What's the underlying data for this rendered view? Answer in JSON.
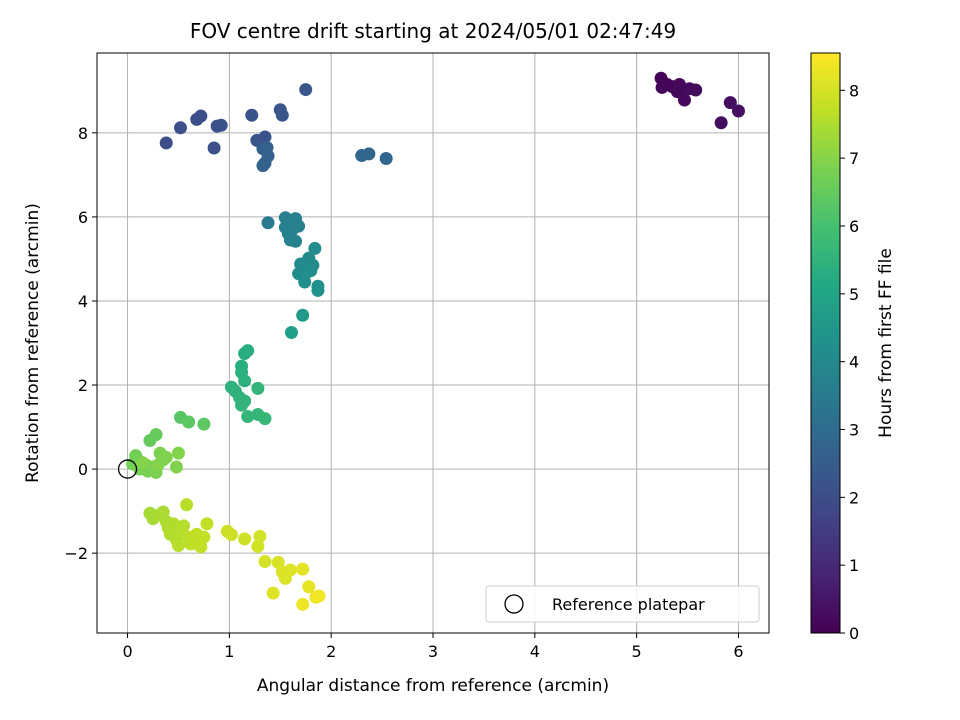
{
  "chart_data": {
    "type": "scatter",
    "title": "FOV centre drift starting at 2024/05/01 02:47:49",
    "xlabel": "Angular distance from reference (arcmin)",
    "ylabel": "Rotation from reference (arcmin)",
    "xlim": [
      -0.3,
      6.3
    ],
    "ylim": [
      -3.9,
      9.9
    ],
    "xticks": [
      0,
      1,
      2,
      3,
      4,
      5,
      6
    ],
    "yticks": [
      -2,
      0,
      2,
      4,
      6,
      8
    ],
    "ytick_labels": [
      "−2",
      "0",
      "2",
      "4",
      "6",
      "8"
    ],
    "grid": true,
    "colorbar": {
      "label": "Hours from first FF file",
      "min": 0,
      "max": 8.55,
      "ticks": [
        0,
        1,
        2,
        3,
        4,
        5,
        6,
        7,
        8
      ],
      "colormap": "viridis"
    },
    "legend": {
      "position": "bottom-right",
      "entries": [
        "Reference platepar"
      ]
    },
    "reference_point": {
      "x": 0,
      "y": 0
    },
    "points": [
      {
        "x": 5.24,
        "y": 9.3,
        "c": 0.05
      },
      {
        "x": 5.3,
        "y": 9.15,
        "c": 0.08
      },
      {
        "x": 5.25,
        "y": 9.08,
        "c": 0.1
      },
      {
        "x": 5.35,
        "y": 9.1,
        "c": 0.12
      },
      {
        "x": 5.42,
        "y": 9.15,
        "c": 0.15
      },
      {
        "x": 5.45,
        "y": 9.05,
        "c": 0.17
      },
      {
        "x": 5.4,
        "y": 8.98,
        "c": 0.2
      },
      {
        "x": 5.47,
        "y": 8.78,
        "c": 0.22
      },
      {
        "x": 5.52,
        "y": 9.05,
        "c": 0.25
      },
      {
        "x": 5.58,
        "y": 9.02,
        "c": 0.27
      },
      {
        "x": 5.83,
        "y": 8.24,
        "c": 0.3
      },
      {
        "x": 5.92,
        "y": 8.72,
        "c": 0.32
      },
      {
        "x": 6.0,
        "y": 8.52,
        "c": 0.35
      },
      {
        "x": 0.38,
        "y": 7.76,
        "c": 2.0
      },
      {
        "x": 0.52,
        "y": 8.12,
        "c": 2.03
      },
      {
        "x": 0.68,
        "y": 8.32,
        "c": 2.05
      },
      {
        "x": 0.72,
        "y": 8.4,
        "c": 2.07
      },
      {
        "x": 0.85,
        "y": 7.64,
        "c": 2.1
      },
      {
        "x": 0.88,
        "y": 8.16,
        "c": 2.12
      },
      {
        "x": 0.92,
        "y": 8.18,
        "c": 2.15
      },
      {
        "x": 1.22,
        "y": 8.42,
        "c": 2.18
      },
      {
        "x": 1.27,
        "y": 7.82,
        "c": 2.2
      },
      {
        "x": 1.35,
        "y": 7.9,
        "c": 2.22
      },
      {
        "x": 1.5,
        "y": 8.55,
        "c": 2.25
      },
      {
        "x": 1.52,
        "y": 8.42,
        "c": 2.27
      },
      {
        "x": 1.75,
        "y": 9.03,
        "c": 2.3
      },
      {
        "x": 1.33,
        "y": 7.62,
        "c": 2.6
      },
      {
        "x": 1.37,
        "y": 7.65,
        "c": 2.62
      },
      {
        "x": 1.38,
        "y": 7.45,
        "c": 2.65
      },
      {
        "x": 1.35,
        "y": 7.28,
        "c": 2.68
      },
      {
        "x": 1.33,
        "y": 7.22,
        "c": 2.7
      },
      {
        "x": 2.3,
        "y": 7.46,
        "c": 2.8
      },
      {
        "x": 2.37,
        "y": 7.5,
        "c": 2.82
      },
      {
        "x": 2.54,
        "y": 7.39,
        "c": 2.85
      },
      {
        "x": 1.38,
        "y": 5.86,
        "c": 3.5
      },
      {
        "x": 1.55,
        "y": 5.98,
        "c": 3.6
      },
      {
        "x": 1.6,
        "y": 5.9,
        "c": 3.62
      },
      {
        "x": 1.65,
        "y": 5.96,
        "c": 3.65
      },
      {
        "x": 1.55,
        "y": 5.75,
        "c": 3.68
      },
      {
        "x": 1.62,
        "y": 5.7,
        "c": 3.7
      },
      {
        "x": 1.68,
        "y": 5.78,
        "c": 3.72
      },
      {
        "x": 1.58,
        "y": 5.6,
        "c": 3.75
      },
      {
        "x": 1.6,
        "y": 5.45,
        "c": 3.78
      },
      {
        "x": 1.65,
        "y": 5.42,
        "c": 3.8
      },
      {
        "x": 1.7,
        "y": 4.88,
        "c": 4.0
      },
      {
        "x": 1.75,
        "y": 4.8,
        "c": 4.02
      },
      {
        "x": 1.78,
        "y": 5.02,
        "c": 4.05
      },
      {
        "x": 1.82,
        "y": 4.85,
        "c": 4.08
      },
      {
        "x": 1.84,
        "y": 5.25,
        "c": 4.1
      },
      {
        "x": 1.68,
        "y": 4.65,
        "c": 4.12
      },
      {
        "x": 1.73,
        "y": 4.6,
        "c": 4.15
      },
      {
        "x": 1.76,
        "y": 4.68,
        "c": 4.17
      },
      {
        "x": 1.8,
        "y": 4.72,
        "c": 4.2
      },
      {
        "x": 1.74,
        "y": 4.45,
        "c": 4.22
      },
      {
        "x": 1.87,
        "y": 4.35,
        "c": 4.25
      },
      {
        "x": 1.87,
        "y": 4.25,
        "c": 4.27
      },
      {
        "x": 1.72,
        "y": 3.66,
        "c": 4.6
      },
      {
        "x": 1.61,
        "y": 3.25,
        "c": 4.8
      },
      {
        "x": 1.15,
        "y": 2.75,
        "c": 5.3
      },
      {
        "x": 1.18,
        "y": 2.82,
        "c": 5.32
      },
      {
        "x": 1.12,
        "y": 2.45,
        "c": 5.35
      },
      {
        "x": 1.12,
        "y": 2.3,
        "c": 5.38
      },
      {
        "x": 1.15,
        "y": 2.1,
        "c": 5.4
      },
      {
        "x": 1.02,
        "y": 1.95,
        "c": 5.45
      },
      {
        "x": 1.06,
        "y": 1.85,
        "c": 5.48
      },
      {
        "x": 1.1,
        "y": 1.7,
        "c": 5.5
      },
      {
        "x": 1.15,
        "y": 1.62,
        "c": 5.52
      },
      {
        "x": 1.12,
        "y": 1.52,
        "c": 5.55
      },
      {
        "x": 1.28,
        "y": 1.92,
        "c": 5.58
      },
      {
        "x": 1.18,
        "y": 1.25,
        "c": 5.6
      },
      {
        "x": 1.28,
        "y": 1.3,
        "c": 5.62
      },
      {
        "x": 1.35,
        "y": 1.2,
        "c": 5.65
      },
      {
        "x": 0.52,
        "y": 1.23,
        "c": 6.3
      },
      {
        "x": 0.6,
        "y": 1.12,
        "c": 6.35
      },
      {
        "x": 0.75,
        "y": 1.07,
        "c": 6.38
      },
      {
        "x": 0.22,
        "y": 0.68,
        "c": 6.5
      },
      {
        "x": 0.28,
        "y": 0.82,
        "c": 6.52
      },
      {
        "x": 0.08,
        "y": 0.32,
        "c": 6.7
      },
      {
        "x": 0.1,
        "y": 0.22,
        "c": 6.72
      },
      {
        "x": 0.05,
        "y": 0.12,
        "c": 6.74
      },
      {
        "x": 0.12,
        "y": 0.0,
        "c": 6.76
      },
      {
        "x": 0.18,
        "y": 0.1,
        "c": 6.78
      },
      {
        "x": 0.2,
        "y": -0.05,
        "c": 6.8
      },
      {
        "x": 0.25,
        "y": 0.05,
        "c": 6.82
      },
      {
        "x": 0.28,
        "y": -0.08,
        "c": 6.84
      },
      {
        "x": 0.32,
        "y": 0.38,
        "c": 6.86
      },
      {
        "x": 0.35,
        "y": 0.22,
        "c": 6.88
      },
      {
        "x": 0.38,
        "y": 0.28,
        "c": 6.9
      },
      {
        "x": 0.48,
        "y": 0.05,
        "c": 6.92
      },
      {
        "x": 0.5,
        "y": 0.38,
        "c": 6.94
      },
      {
        "x": 0.15,
        "y": 0.15,
        "c": 6.96
      },
      {
        "x": 0.3,
        "y": 0.1,
        "c": 6.98
      },
      {
        "x": 0.22,
        "y": -1.05,
        "c": 7.4
      },
      {
        "x": 0.25,
        "y": -1.18,
        "c": 7.42
      },
      {
        "x": 0.3,
        "y": -1.1,
        "c": 7.44
      },
      {
        "x": 0.35,
        "y": -1.02,
        "c": 7.46
      },
      {
        "x": 0.38,
        "y": -1.25,
        "c": 7.48
      },
      {
        "x": 0.4,
        "y": -1.4,
        "c": 7.5
      },
      {
        "x": 0.45,
        "y": -1.3,
        "c": 7.52
      },
      {
        "x": 0.42,
        "y": -1.55,
        "c": 7.54
      },
      {
        "x": 0.48,
        "y": -1.68,
        "c": 7.56
      },
      {
        "x": 0.52,
        "y": -1.5,
        "c": 7.58
      },
      {
        "x": 0.55,
        "y": -1.35,
        "c": 7.6
      },
      {
        "x": 0.5,
        "y": -1.82,
        "c": 7.62
      },
      {
        "x": 0.58,
        "y": -0.85,
        "c": 7.64
      },
      {
        "x": 0.6,
        "y": -1.62,
        "c": 7.66
      },
      {
        "x": 0.62,
        "y": -1.78,
        "c": 7.68
      },
      {
        "x": 0.65,
        "y": -1.7,
        "c": 7.7
      },
      {
        "x": 0.68,
        "y": -1.55,
        "c": 7.72
      },
      {
        "x": 0.72,
        "y": -1.85,
        "c": 7.74
      },
      {
        "x": 0.78,
        "y": -1.3,
        "c": 7.76
      },
      {
        "x": 0.75,
        "y": -1.62,
        "c": 7.78
      },
      {
        "x": 0.98,
        "y": -1.48,
        "c": 7.9
      },
      {
        "x": 1.02,
        "y": -1.56,
        "c": 7.92
      },
      {
        "x": 1.15,
        "y": -1.66,
        "c": 7.94
      },
      {
        "x": 1.28,
        "y": -1.84,
        "c": 7.96
      },
      {
        "x": 1.3,
        "y": -1.6,
        "c": 7.98
      },
      {
        "x": 1.35,
        "y": -2.2,
        "c": 8.0
      },
      {
        "x": 1.48,
        "y": -2.22,
        "c": 8.05
      },
      {
        "x": 1.52,
        "y": -2.45,
        "c": 8.08
      },
      {
        "x": 1.55,
        "y": -2.6,
        "c": 8.1
      },
      {
        "x": 1.6,
        "y": -2.4,
        "c": 8.12
      },
      {
        "x": 1.43,
        "y": -2.95,
        "c": 8.15
      },
      {
        "x": 1.72,
        "y": -2.38,
        "c": 8.2
      },
      {
        "x": 1.78,
        "y": -2.8,
        "c": 8.25
      },
      {
        "x": 1.85,
        "y": -3.05,
        "c": 8.3
      },
      {
        "x": 1.72,
        "y": -3.22,
        "c": 8.35
      },
      {
        "x": 1.88,
        "y": -3.02,
        "c": 8.4
      }
    ]
  }
}
